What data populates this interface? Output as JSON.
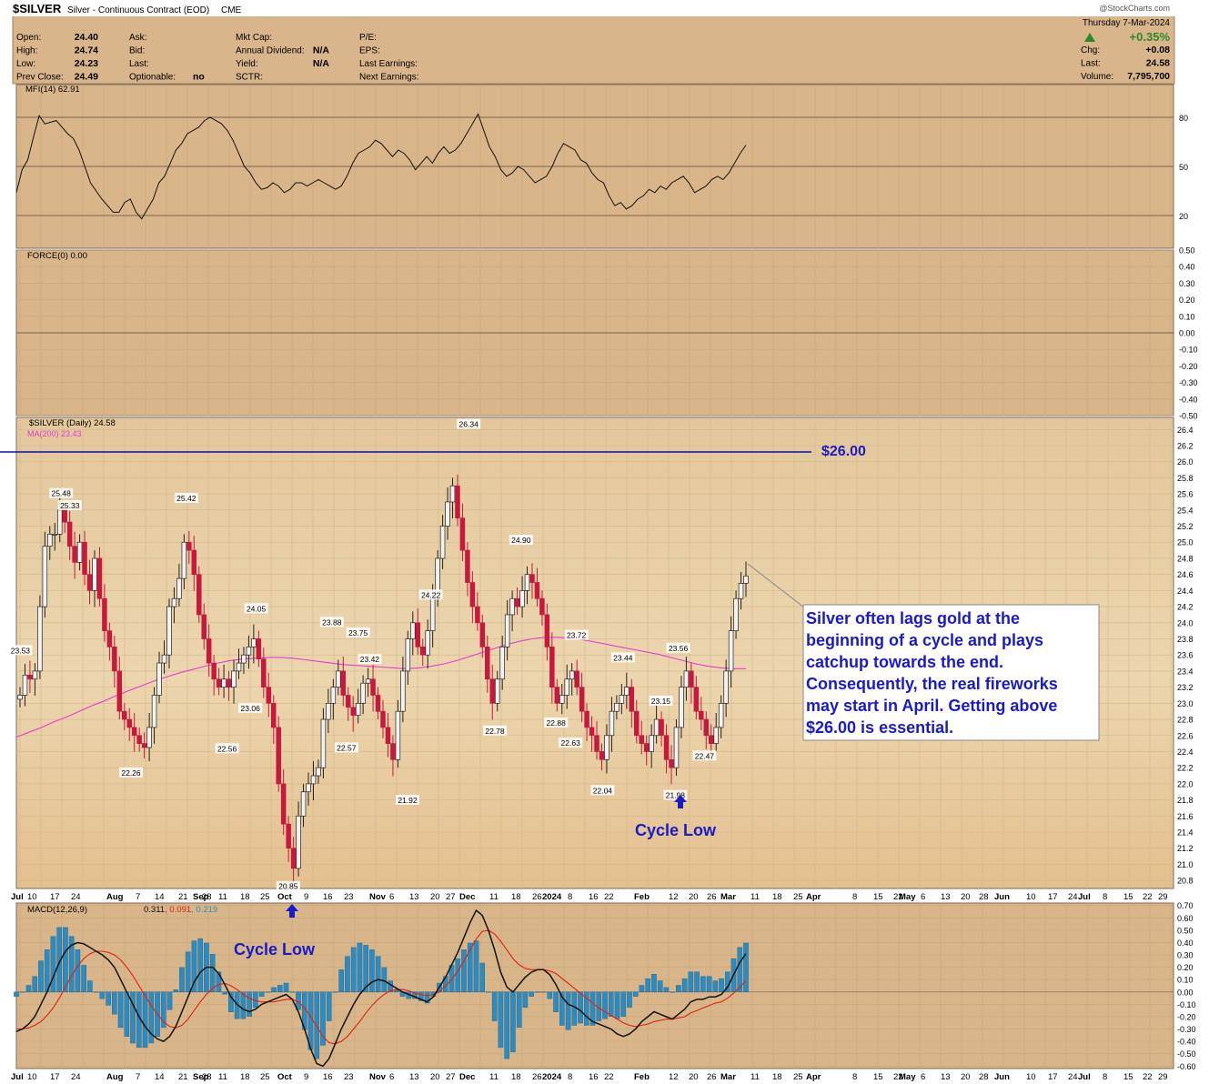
{
  "header": {
    "symbol": "$SILVER",
    "name": "Silver - Continuous Contract (EOD)",
    "exchange": "CME",
    "credit": "@StockCharts.com",
    "date": "Thursday  7-Mar-2024",
    "change_pct": "+0.35%",
    "left_stats": [
      {
        "label": "Open:",
        "value": "24.40"
      },
      {
        "label": "High:",
        "value": "24.74"
      },
      {
        "label": "Low:",
        "value": "24.23"
      },
      {
        "label": "Prev Close:",
        "value": "24.49"
      }
    ],
    "mid_stats": [
      {
        "label": "Ask:",
        "value": ""
      },
      {
        "label": "Bid:",
        "value": ""
      },
      {
        "label": "Last:",
        "value": ""
      },
      {
        "label": "Optionable:",
        "value": "no"
      }
    ],
    "mid2_stats": [
      {
        "label": "Mkt Cap:",
        "value": ""
      },
      {
        "label": "Annual Dividend:",
        "value": "N/A"
      },
      {
        "label": "Yield:",
        "value": "N/A"
      },
      {
        "label": "SCTR:",
        "value": ""
      }
    ],
    "right_labels": [
      "P/E:",
      "EPS:",
      "Last Earnings:",
      "Next Earnings:"
    ],
    "far_right_stats": [
      {
        "label": "Chg:",
        "value": "+0.08"
      },
      {
        "label": "Last:",
        "value": "24.58"
      },
      {
        "label": "Volume:",
        "value": "7,795,700"
      }
    ]
  },
  "colors": {
    "panel_bg": "#d9b68a",
    "header_bg": "#d8b58a",
    "up_candle": "#f2f2f2",
    "down_candle": "#c8193c",
    "ma_line": "#e040d0",
    "resistance_line": "#0015b0",
    "annotation_text": "#1a1ac8",
    "macd_hist": "#2e8bc0",
    "signal_line": "#e02010",
    "change_up": "#2a8a2a"
  },
  "chart_data": [
    {
      "type": "line",
      "title": "MFI(14) 62.91",
      "y_ticks": [
        "80",
        "50",
        "20"
      ],
      "y_reference_lines": [
        80,
        50,
        20
      ],
      "ylim": [
        0,
        100
      ],
      "series": [
        {
          "name": "MFI(14)",
          "values": [
            34,
            48,
            54,
            68,
            81,
            76,
            77,
            78,
            74,
            70,
            67,
            60,
            50,
            40,
            35,
            30,
            26,
            22,
            22,
            28,
            30,
            22,
            18,
            24,
            30,
            40,
            44,
            52,
            60,
            64,
            70,
            72,
            74,
            78,
            80,
            78,
            76,
            72,
            66,
            58,
            50,
            46,
            40,
            36,
            37,
            40,
            38,
            34,
            36,
            40,
            40,
            38,
            40,
            42,
            40,
            38,
            36,
            38,
            44,
            52,
            58,
            60,
            62,
            66,
            64,
            60,
            56,
            60,
            58,
            54,
            48,
            52,
            56,
            52,
            58,
            62,
            58,
            60,
            64,
            70,
            76,
            82,
            72,
            62,
            56,
            48,
            44,
            46,
            50,
            48,
            44,
            40,
            42,
            44,
            50,
            58,
            64,
            62,
            60,
            54,
            52,
            46,
            42,
            40,
            32,
            26,
            28,
            24,
            26,
            30,
            32,
            36,
            34,
            38,
            36,
            40,
            42,
            44,
            40,
            34,
            36,
            38,
            42,
            44,
            42,
            46,
            52,
            58,
            63
          ]
        }
      ]
    },
    {
      "type": "line",
      "title": "FORCE(0) 0.00",
      "y_ticks": [
        "0.50",
        "0.40",
        "0.30",
        "0.20",
        "0.10",
        "0.00",
        "-0.10",
        "-0.20",
        "-0.30",
        "-0.40",
        "-0.50"
      ],
      "ylim": [
        -0.5,
        0.5
      ],
      "series": [
        {
          "name": "FORCE(0)",
          "values": [
            0.0
          ]
        }
      ]
    },
    {
      "type": "candlestick",
      "title": "$SILVER (Daily) 24.58",
      "ma_label": "MA(200) 23.43",
      "ylim": [
        20.7,
        26.55
      ],
      "y_ticks": [
        "26.4",
        "26.2",
        "26.0",
        "25.8",
        "25.6",
        "25.4",
        "25.2",
        "25.0",
        "24.8",
        "24.6",
        "24.4",
        "24.2",
        "24.0",
        "23.8",
        "23.6",
        "23.4",
        "23.2",
        "23.0",
        "22.8",
        "22.6",
        "22.4",
        "22.2",
        "22.0",
        "21.8",
        "21.6",
        "21.4",
        "21.2",
        "21.0",
        "20.8"
      ],
      "resistance": {
        "value": 26.0,
        "label": "$26.00"
      },
      "close_prices": [
        23.1,
        23.35,
        23.3,
        23.4,
        24.2,
        24.95,
        25.1,
        25.1,
        25.4,
        25.25,
        24.95,
        24.75,
        25.0,
        24.6,
        24.4,
        24.8,
        24.3,
        23.9,
        23.7,
        23.4,
        22.9,
        22.8,
        22.7,
        22.6,
        22.5,
        22.45,
        22.7,
        23.1,
        23.5,
        23.6,
        24.2,
        24.3,
        24.55,
        25.0,
        24.9,
        24.6,
        24.1,
        23.8,
        23.5,
        23.3,
        23.2,
        23.3,
        23.2,
        23.4,
        23.5,
        23.6,
        23.7,
        23.8,
        23.55,
        23.2,
        23.0,
        22.7,
        22.0,
        21.5,
        21.2,
        20.95,
        21.6,
        21.9,
        22.0,
        22.1,
        22.2,
        22.8,
        23.0,
        23.2,
        23.4,
        23.1,
        22.95,
        22.85,
        23.0,
        23.25,
        23.3,
        23.1,
        22.9,
        22.7,
        22.5,
        22.3,
        22.9,
        23.4,
        23.8,
        24.0,
        23.7,
        23.6,
        23.9,
        24.3,
        24.8,
        25.2,
        25.5,
        25.7,
        25.3,
        24.9,
        24.5,
        24.2,
        24.0,
        23.7,
        23.3,
        23.0,
        23.3,
        23.7,
        24.1,
        24.3,
        24.2,
        24.4,
        24.6,
        24.5,
        24.3,
        24.1,
        23.7,
        23.2,
        23.0,
        23.1,
        23.3,
        23.4,
        23.2,
        22.9,
        22.7,
        22.6,
        22.4,
        22.3,
        22.6,
        22.9,
        23.0,
        23.1,
        23.2,
        22.9,
        22.6,
        22.5,
        22.4,
        22.6,
        22.8,
        22.6,
        22.3,
        22.2,
        22.7,
        23.2,
        23.4,
        23.2,
        22.9,
        22.8,
        22.6,
        22.5,
        22.7,
        23.0,
        23.4,
        23.9,
        24.3,
        24.49,
        24.58
      ],
      "ma200": [
        22.58,
        22.64,
        22.7,
        22.77,
        22.83,
        22.9,
        22.97,
        23.03,
        23.1,
        23.16,
        23.22,
        23.28,
        23.33,
        23.38,
        23.42,
        23.46,
        23.5,
        23.53,
        23.55,
        23.56,
        23.57,
        23.57,
        23.56,
        23.54,
        23.52,
        23.5,
        23.48,
        23.47,
        23.46,
        23.45,
        23.44,
        23.43,
        23.44,
        23.46,
        23.49,
        23.53,
        23.58,
        23.63,
        23.68,
        23.73,
        23.77,
        23.8,
        23.82,
        23.82,
        23.81,
        23.79,
        23.76,
        23.73,
        23.7,
        23.67,
        23.64,
        23.61,
        23.57,
        23.53,
        23.49,
        23.46,
        23.44,
        23.43,
        23.43
      ],
      "price_labels": [
        {
          "date": "Jul 3",
          "value": "23.53"
        },
        {
          "date": "Jul 17",
          "value": "25.48"
        },
        {
          "date": "Jul 20",
          "value": "25.33"
        },
        {
          "date": "Aug 10",
          "value": "22.26"
        },
        {
          "date": "Aug 29",
          "value": "25.42"
        },
        {
          "date": "Sep 12",
          "value": "22.56"
        },
        {
          "date": "Sep 20",
          "value": "23.06"
        },
        {
          "date": "Sep 22",
          "value": "24.05"
        },
        {
          "date": "Oct 3",
          "value": "20.85"
        },
        {
          "date": "Oct 18",
          "value": "23.88"
        },
        {
          "date": "Oct 23",
          "value": "22.57"
        },
        {
          "date": "Oct 27",
          "value": "23.75"
        },
        {
          "date": "Oct 31",
          "value": "23.42"
        },
        {
          "date": "Nov 13",
          "value": "21.92"
        },
        {
          "date": "Nov 21",
          "value": "24.22"
        },
        {
          "date": "Dec 4",
          "value": "26.34"
        },
        {
          "date": "Dec 13",
          "value": "22.78"
        },
        {
          "date": "Dec 22",
          "value": "24.90"
        },
        {
          "date": "Jan 3",
          "value": "22.88"
        },
        {
          "date": "Jan 8",
          "value": "22.63"
        },
        {
          "date": "Jan 10",
          "value": "23.72"
        },
        {
          "date": "Jan 19",
          "value": "22.04"
        },
        {
          "date": "Jan 26",
          "value": "23.44"
        },
        {
          "date": "Feb 8",
          "value": "23.15"
        },
        {
          "date": "Feb 13",
          "value": "21.98"
        },
        {
          "date": "Feb 14",
          "value": "23.56"
        },
        {
          "date": "Feb 23",
          "value": "22.47"
        }
      ],
      "annotations": [
        {
          "text": "Cycle Low",
          "date": "Feb 13"
        },
        {
          "text": "Silver often lags gold at the beginning of a cycle and plays catchup towards the end. Consequently, the real fireworks may start in April. Getting above $26.00 is essential."
        }
      ]
    },
    {
      "type": "bar",
      "title": "MACD(12,26,9)",
      "values_label": [
        "0.311",
        "0.091",
        "0.219"
      ],
      "y_ticks": [
        "0.70",
        "0.60",
        "0.50",
        "0.40",
        "0.30",
        "0.20",
        "0.10",
        "0.00",
        "-0.10",
        "-0.20",
        "-0.30",
        "-0.40",
        "-0.50",
        "-0.60"
      ],
      "ylim": [
        -0.62,
        0.72
      ],
      "annotations": [
        {
          "text": "Cycle Low",
          "date": "Oct 3"
        }
      ],
      "series": [
        {
          "name": "MACD",
          "values": [
            -0.32,
            -0.3,
            -0.26,
            -0.2,
            -0.1,
            0.0,
            0.12,
            0.24,
            0.33,
            0.38,
            0.4,
            0.39,
            0.36,
            0.33,
            0.3,
            0.26,
            0.2,
            0.1,
            0.0,
            -0.1,
            -0.2,
            -0.28,
            -0.34,
            -0.38,
            -0.4,
            -0.36,
            -0.28,
            -0.16,
            -0.04,
            0.08,
            0.16,
            0.2,
            0.2,
            0.15,
            0.06,
            -0.04,
            -0.1,
            -0.14,
            -0.16,
            -0.14,
            -0.1,
            -0.08,
            -0.06,
            -0.04,
            -0.02,
            -0.06,
            -0.16,
            -0.3,
            -0.46,
            -0.58,
            -0.6,
            -0.54,
            -0.42,
            -0.3,
            -0.2,
            -0.1,
            -0.02,
            0.04,
            0.08,
            0.1,
            0.09,
            0.06,
            0.03,
            0.0,
            -0.02,
            -0.04,
            -0.06,
            -0.08,
            -0.04,
            0.04,
            0.12,
            0.22,
            0.32,
            0.44,
            0.56,
            0.66,
            0.62,
            0.5,
            0.34,
            0.16,
            0.04,
            0.0,
            0.06,
            0.12,
            0.16,
            0.18,
            0.18,
            0.14,
            0.06,
            -0.04,
            -0.1,
            -0.12,
            -0.15,
            -0.2,
            -0.24,
            -0.26,
            -0.28,
            -0.3,
            -0.34,
            -0.36,
            -0.34,
            -0.3,
            -0.24,
            -0.2,
            -0.16,
            -0.18,
            -0.2,
            -0.22,
            -0.18,
            -0.14,
            -0.08,
            -0.06,
            -0.06,
            -0.04,
            -0.04,
            -0.02,
            0.04,
            0.14,
            0.24,
            0.31
          ]
        },
        {
          "name": "Signal",
          "values": [
            -0.3,
            -0.3,
            -0.29,
            -0.27,
            -0.24,
            -0.19,
            -0.13,
            -0.05,
            0.04,
            0.13,
            0.21,
            0.27,
            0.31,
            0.33,
            0.33,
            0.32,
            0.3,
            0.26,
            0.2,
            0.13,
            0.05,
            -0.03,
            -0.11,
            -0.18,
            -0.24,
            -0.28,
            -0.29,
            -0.27,
            -0.22,
            -0.15,
            -0.08,
            -0.02,
            0.03,
            0.06,
            0.07,
            0.05,
            0.02,
            -0.02,
            -0.05,
            -0.07,
            -0.08,
            -0.08,
            -0.08,
            -0.07,
            -0.06,
            -0.06,
            -0.08,
            -0.13,
            -0.2,
            -0.28,
            -0.36,
            -0.41,
            -0.42,
            -0.4,
            -0.36,
            -0.3,
            -0.24,
            -0.17,
            -0.11,
            -0.06,
            -0.02,
            0.01,
            0.02,
            0.02,
            0.01,
            -0.01,
            -0.02,
            -0.03,
            -0.02,
            0.0,
            0.05,
            0.1,
            0.17,
            0.25,
            0.34,
            0.43,
            0.49,
            0.5,
            0.47,
            0.41,
            0.34,
            0.27,
            0.22,
            0.19,
            0.18,
            0.18,
            0.18,
            0.17,
            0.15,
            0.11,
            0.07,
            0.03,
            -0.01,
            -0.05,
            -0.09,
            -0.13,
            -0.16,
            -0.19,
            -0.22,
            -0.25,
            -0.27,
            -0.28,
            -0.27,
            -0.26,
            -0.24,
            -0.23,
            -0.22,
            -0.22,
            -0.21,
            -0.2,
            -0.17,
            -0.15,
            -0.13,
            -0.11,
            -0.09,
            -0.08,
            -0.05,
            -0.01,
            0.04,
            0.09
          ]
        }
      ]
    }
  ],
  "x_axis": {
    "month_ticks": [
      "Jul",
      "Aug",
      "Sep",
      "Oct",
      "Nov",
      "Dec",
      "2024",
      "Feb",
      "Mar",
      "Apr",
      "May",
      "Jun",
      "Jul"
    ],
    "day_ticks": [
      "10",
      "17",
      "24",
      "7",
      "14",
      "21",
      "28",
      "11",
      "18",
      "25",
      "9",
      "16",
      "23",
      "6",
      "13",
      "20",
      "27",
      "11",
      "18",
      "26",
      "8",
      "16",
      "22",
      "12",
      "20",
      "26",
      "11",
      "18",
      "25",
      "8",
      "15",
      "22",
      "6",
      "13",
      "20",
      "28",
      "10",
      "17",
      "24",
      "8",
      "15",
      "22",
      "29"
    ]
  }
}
